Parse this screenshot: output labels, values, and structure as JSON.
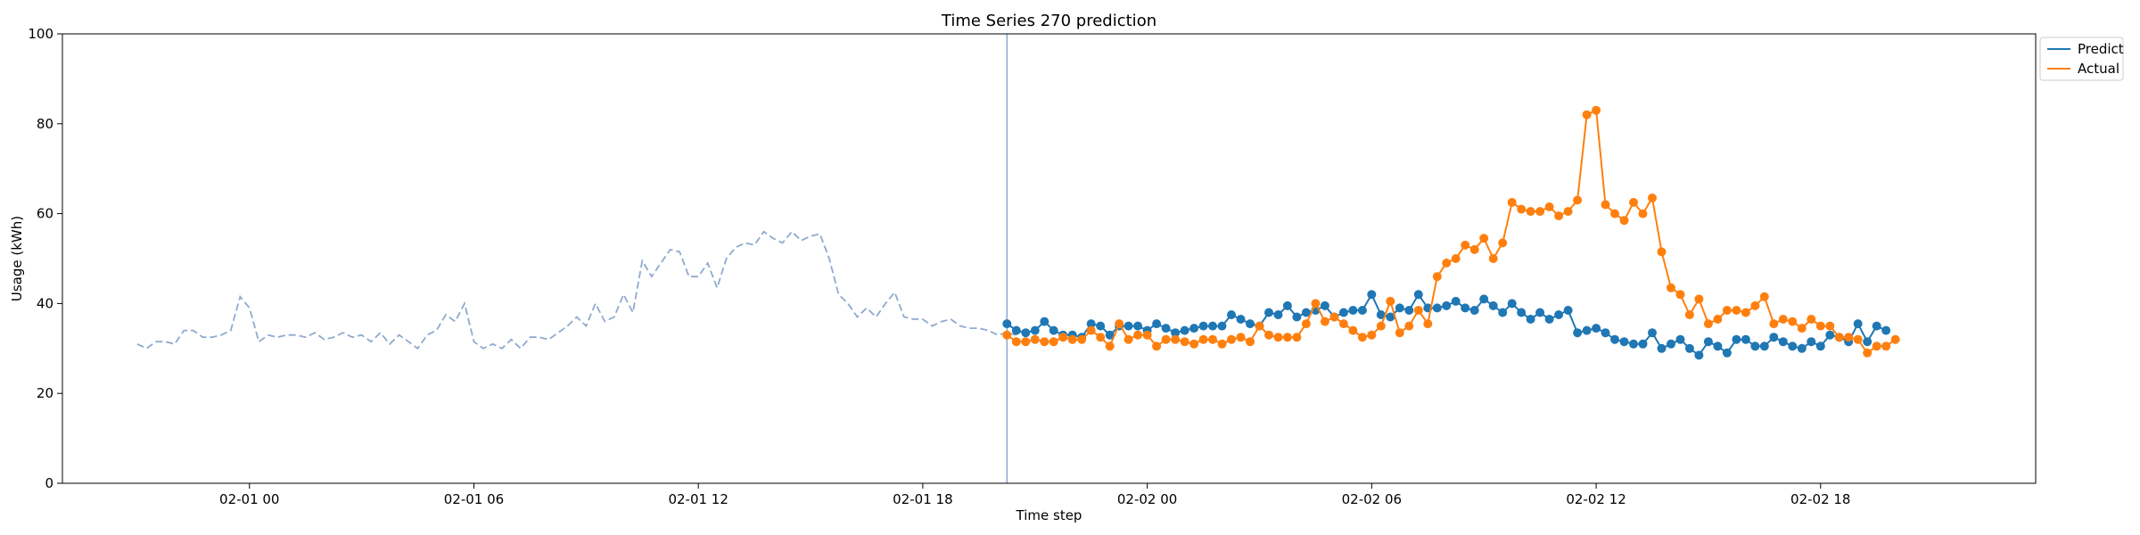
{
  "chart_data": {
    "type": "line",
    "title": "Time Series 270 prediction",
    "xlabel": "Time step",
    "ylabel": "Usage (kWh)",
    "ylim": [
      0,
      100
    ],
    "yticks": [
      0,
      20,
      40,
      60,
      80,
      100
    ],
    "xticks": [
      {
        "label": "02-01 00",
        "step": 12
      },
      {
        "label": "02-01 06",
        "step": 36
      },
      {
        "label": "02-01 12",
        "step": 60
      },
      {
        "label": "02-01 18",
        "step": 84
      },
      {
        "label": "02-02 00",
        "step": 108
      },
      {
        "label": "02-02 06",
        "step": 132
      },
      {
        "label": "02-02 12",
        "step": 156
      },
      {
        "label": "02-02 18",
        "step": 180
      }
    ],
    "x_start_step": -8,
    "x_end_step": 203,
    "forecast_start_step": 93,
    "legend": {
      "position": "top-right",
      "entries": [
        "Predict",
        "Actual"
      ]
    },
    "colors": {
      "history": "#8fa9cf",
      "predict": "#1f77b4",
      "actual": "#ff7f0e",
      "divider": "#8fa9cf"
    },
    "history": {
      "start_step": 0,
      "values": [
        31,
        30,
        31.5,
        31.5,
        31,
        34,
        34,
        32.5,
        32.5,
        33,
        34,
        41.5,
        39,
        31.5,
        33,
        32.5,
        33,
        33,
        32.5,
        33.5,
        32,
        32.5,
        33.5,
        32.5,
        33,
        31.5,
        33.5,
        31,
        33,
        31.5,
        30,
        33,
        34,
        37.5,
        36,
        40,
        31.5,
        30,
        31,
        30,
        32,
        30,
        32.5,
        32.5,
        32,
        33.5,
        35,
        37,
        35,
        40,
        36,
        37,
        42,
        38,
        49.5,
        46,
        49,
        52,
        51.5,
        46,
        46,
        49,
        43.5,
        50,
        52.5,
        53.5,
        53,
        56,
        54.5,
        53.5,
        56,
        54,
        55,
        55.5,
        50,
        42,
        40,
        37,
        39,
        37,
        40,
        42.5,
        37,
        36.5,
        36.5,
        35,
        36,
        36.5,
        35,
        34.5,
        34.5,
        34,
        33,
        33.5,
        33
      ]
    },
    "series": [
      {
        "name": "Predict",
        "start_step": 93,
        "values": [
          35.5,
          34,
          33.5,
          34,
          36,
          34,
          33,
          33,
          32.5,
          35.5,
          35,
          33,
          35,
          35,
          35,
          34,
          35.5,
          34.5,
          33.5,
          34,
          34.5,
          35,
          35,
          35,
          37.5,
          36.5,
          35.5,
          35,
          38,
          37.5,
          39.5,
          37,
          38,
          38.5,
          39.5,
          37,
          38,
          38.5,
          38.5,
          42,
          37.5,
          37,
          39,
          38.5,
          42,
          39,
          39,
          39.5,
          40.5,
          39,
          38.5,
          41,
          39.5,
          38,
          40,
          38,
          36.5,
          38,
          36.5,
          37.5,
          38.5,
          33.5,
          34,
          34.5,
          33.5,
          32,
          31.5,
          31,
          31,
          33.5,
          30,
          31,
          32,
          30,
          28.5,
          31.5,
          30.5,
          29,
          32,
          32,
          30.5,
          30.5,
          32.5,
          31.5,
          30.5,
          30,
          31.5,
          30.5,
          33,
          32.5,
          31.5,
          35.5,
          31.5,
          35,
          34
        ]
      },
      {
        "name": "Actual",
        "start_step": 93,
        "values": [
          33,
          31.5,
          31.5,
          32,
          31.5,
          31.5,
          32.5,
          32,
          32,
          34,
          32.5,
          30.5,
          35.5,
          32,
          33,
          33,
          30.5,
          32,
          32,
          31.5,
          31,
          32,
          32,
          31,
          32,
          32.5,
          31.5,
          35,
          33,
          32.5,
          32.5,
          32.5,
          35.5,
          40,
          36,
          37,
          35.5,
          34,
          32.5,
          33,
          35,
          40.5,
          33.5,
          35,
          38.5,
          35.5,
          46,
          49,
          50,
          53,
          52,
          54.5,
          50,
          53.5,
          62.5,
          61,
          60.5,
          60.5,
          61.5,
          59.5,
          60.5,
          63,
          82,
          83,
          62,
          60,
          58.5,
          62.5,
          60,
          63.5,
          51.5,
          43.5,
          42,
          37.5,
          41,
          35.5,
          36.5,
          38.5,
          38.5,
          38,
          39.5,
          41.5,
          35.5,
          36.5,
          36,
          34.5,
          36.5,
          35,
          35,
          32.5,
          32.5,
          32,
          29,
          30.5,
          30.5,
          32
        ]
      }
    ]
  }
}
